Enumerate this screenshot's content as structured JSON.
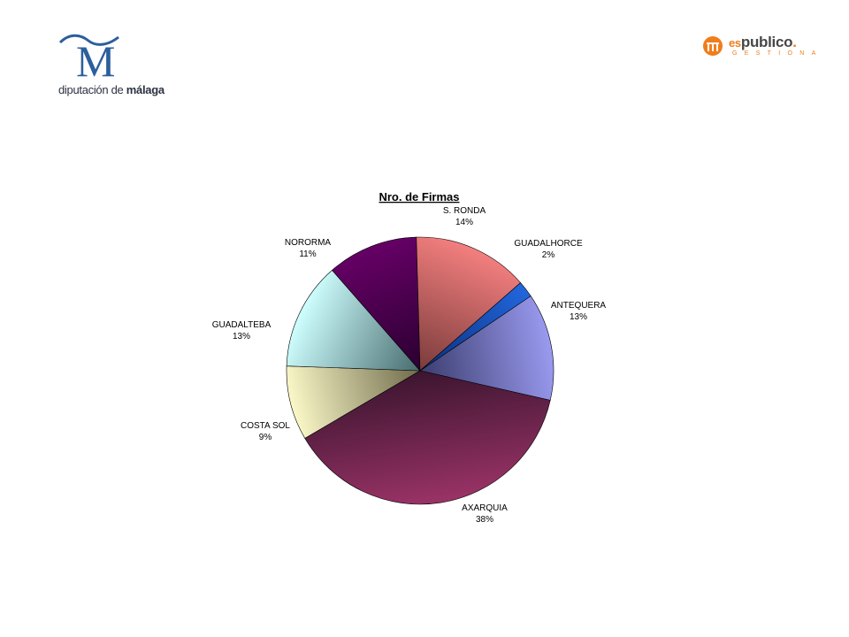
{
  "logo_left": {
    "org_prefix": "diputación de ",
    "org_bold": "málaga",
    "mark": "M"
  },
  "logo_right": {
    "prefix": "es",
    "name": "publico",
    "dot": ".",
    "tagline": "GESTIONA"
  },
  "chart_data": {
    "type": "pie",
    "title": "Nro. de Firmas",
    "legend": "none",
    "slices": [
      {
        "label": "ANTEQUERA",
        "value": 13,
        "pct_label": "13%",
        "color": "#9a9af0",
        "color_dark": "#3b3d6e"
      },
      {
        "label": "AXARQUIA",
        "value": 38,
        "pct_label": "38%",
        "color": "#9a3366",
        "color_dark": "#3c1530"
      },
      {
        "label": "COSTA SOL",
        "value": 9,
        "pct_label": "9%",
        "color": "#fbf8c8",
        "color_dark": "#6f6b4b"
      },
      {
        "label": "GUADALTEBA",
        "value": 13,
        "pct_label": "13%",
        "color": "#cfffff",
        "color_dark": "#476b6e"
      },
      {
        "label": "NORORMA",
        "value": 11,
        "pct_label": "11%",
        "color": "#660066",
        "color_dark": "#2a0030"
      },
      {
        "label": "S. RONDA",
        "value": 14,
        "pct_label": "14%",
        "color": "#f47f7f",
        "color_dark": "#7a3b3b"
      },
      {
        "label": "GUADALHORCE",
        "value": 2,
        "pct_label": "2%",
        "color": "#2266dd",
        "color_dark": "#0a2f7a"
      }
    ]
  }
}
